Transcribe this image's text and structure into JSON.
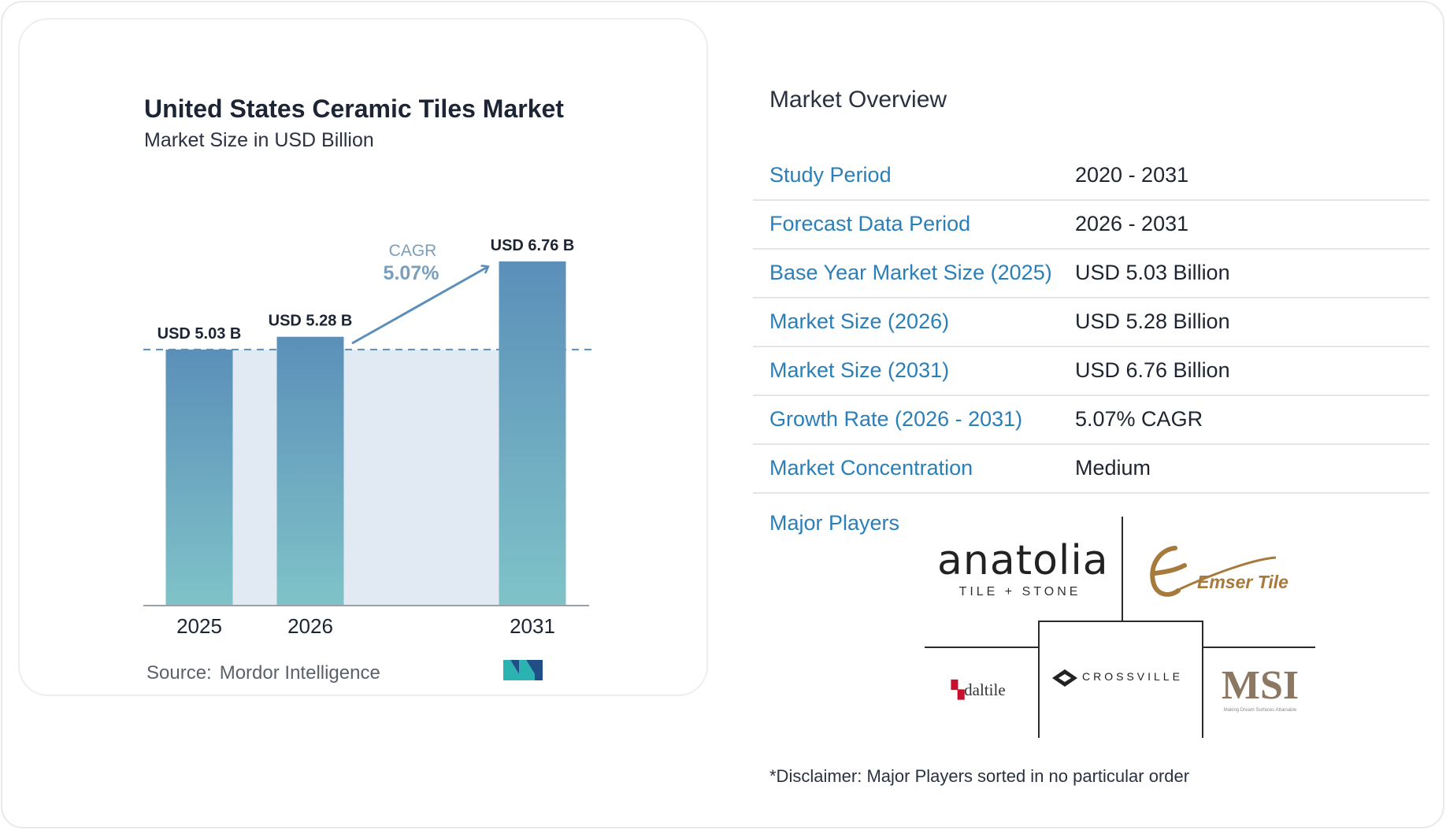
{
  "chart_data": {
    "type": "bar",
    "title": "United States Ceramic Tiles Market",
    "subtitle": "Market Size in USD Billion",
    "categories": [
      "2025",
      "2026",
      "2031"
    ],
    "values": [
      5.03,
      5.28,
      6.76
    ],
    "value_labels": [
      "USD 5.03 B",
      "USD 5.28 B",
      "USD 6.76 B"
    ],
    "cagr_label": "CAGR",
    "cagr_value": "5.07%",
    "ylim": [
      0,
      6.76
    ],
    "grid": false,
    "colors": {
      "bar_top": "#5b8fb9",
      "bar_bottom": "#7fc3c8",
      "band": "#e1e9f2",
      "arrow": "#5b8fb9"
    }
  },
  "source": {
    "label": "Source:",
    "name": "Mordor Intelligence"
  },
  "brand_icon": "mordor-intelligence-logo-icon",
  "overview": {
    "heading": "Market Overview",
    "rows": [
      {
        "label": "Study Period",
        "value": "2020 - 2031"
      },
      {
        "label": "Forecast Data Period",
        "value": "2026 - 2031"
      },
      {
        "label": "Base Year Market Size (2025)",
        "value": "USD 5.03 Billion"
      },
      {
        "label": "Market Size (2026)",
        "value": "USD 5.28 Billion"
      },
      {
        "label": "Market Size (2031)",
        "value": "USD 6.76 Billion"
      },
      {
        "label": "Growth Rate (2026 - 2031)",
        "value": "5.07% CAGR"
      },
      {
        "label": "Market Concentration",
        "value": "Medium"
      }
    ],
    "players_label": "Major Players",
    "players": {
      "anatolia": {
        "name": "anatolia",
        "tagline": "TILE + STONE"
      },
      "emser": {
        "name": "Emser Tile"
      },
      "daltile": {
        "name": "daltile"
      },
      "crossville": {
        "name": "CROSSVILLE"
      },
      "msi": {
        "name": "MSI",
        "tagline": "Making Dream Surfaces Attainable"
      }
    },
    "disclaimer": "*Disclaimer: Major Players sorted in no particular order"
  }
}
